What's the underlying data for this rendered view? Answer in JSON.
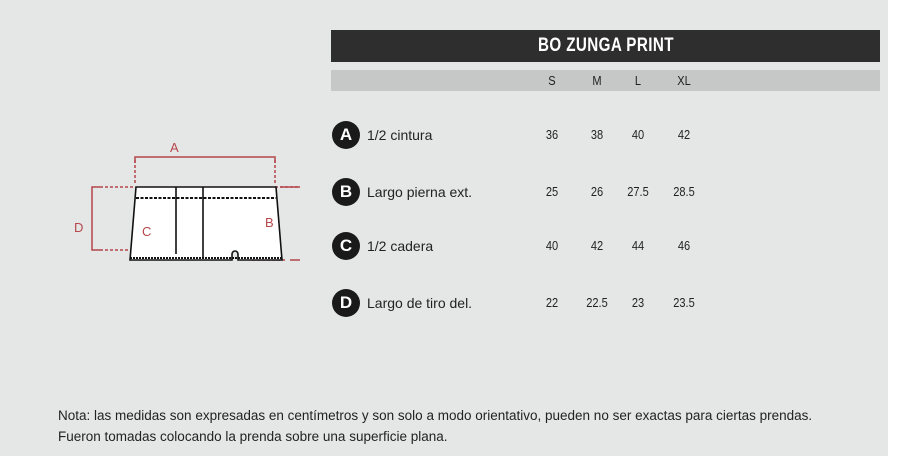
{
  "title": "BO ZUNGA PRINT",
  "sizes": [
    "S",
    "M",
    "L",
    "XL"
  ],
  "rows": [
    {
      "letter": "A",
      "label": "1/2 cintura",
      "values": [
        "36",
        "38",
        "40",
        "42"
      ]
    },
    {
      "letter": "B",
      "label": "Largo pierna ext.",
      "values": [
        "25",
        "26",
        "27.5",
        "28.5"
      ]
    },
    {
      "letter": "C",
      "label": "1/2 cadera",
      "values": [
        "40",
        "42",
        "44",
        "46"
      ]
    },
    {
      "letter": "D",
      "label": "Largo de tiro del.",
      "values": [
        "22",
        "22.5",
        "23",
        "23.5"
      ]
    }
  ],
  "diagram": {
    "labels": [
      "A",
      "B",
      "C",
      "D"
    ],
    "accent": "#b5474b"
  },
  "note": [
    "Nota: las medidas son expresadas en centímetros y son solo a modo orientativo, pueden no ser exactas para ciertas prendas.",
    "Fueron tomadas colocando la prenda sobre una superficie plana."
  ]
}
